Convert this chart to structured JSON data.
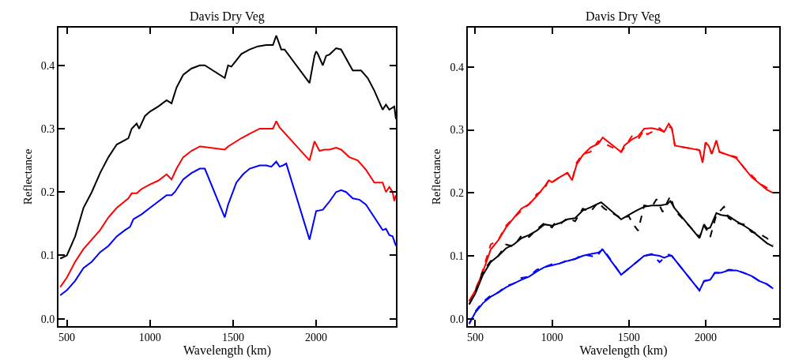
{
  "chart_data": [
    {
      "type": "line",
      "title": "Davis Dry Veg",
      "xlabel": "Wavelength (km)",
      "ylabel": "Reflectance",
      "xlim": [
        450,
        2480
      ],
      "ylim": [
        -0.012,
        0.46
      ],
      "xticks": [
        500,
        1000,
        1500,
        2000
      ],
      "yticks": [
        {
          "value": 0,
          "label": "0.0"
        },
        0.1,
        0.2,
        0.3,
        0.4
      ],
      "marker": "none",
      "series": [
        {
          "color": "#000000",
          "line_style": "solid",
          "x": [
            460,
            500,
            550,
            600,
            650,
            700,
            750,
            800,
            870,
            890,
            920,
            935,
            970,
            1000,
            1050,
            1100,
            1130,
            1160,
            1200,
            1250,
            1300,
            1330,
            1450,
            1470,
            1490,
            1550,
            1600,
            1650,
            1700,
            1740,
            1760,
            1790,
            1810,
            1960,
            1990,
            2000,
            2010,
            2040,
            2060,
            2080,
            2120,
            2150,
            2220,
            2270,
            2310,
            2350,
            2400,
            2420,
            2440,
            2470,
            2480
          ],
          "values": [
            0.095,
            0.1,
            0.13,
            0.175,
            0.2,
            0.23,
            0.255,
            0.275,
            0.285,
            0.3,
            0.308,
            0.3,
            0.32,
            0.327,
            0.335,
            0.345,
            0.34,
            0.365,
            0.385,
            0.395,
            0.4,
            0.4,
            0.38,
            0.4,
            0.398,
            0.418,
            0.425,
            0.43,
            0.432,
            0.432,
            0.447,
            0.425,
            0.425,
            0.372,
            0.415,
            0.422,
            0.418,
            0.4,
            0.415,
            0.417,
            0.427,
            0.425,
            0.392,
            0.392,
            0.38,
            0.36,
            0.33,
            0.338,
            0.33,
            0.335,
            0.315
          ]
        },
        {
          "color": "#ff0000",
          "line_style": "solid",
          "x": [
            460,
            500,
            550,
            600,
            650,
            700,
            750,
            800,
            870,
            890,
            920,
            950,
            1000,
            1050,
            1100,
            1130,
            1160,
            1200,
            1250,
            1300,
            1450,
            1470,
            1550,
            1600,
            1660,
            1720,
            1740,
            1760,
            1780,
            1960,
            1990,
            2020,
            2050,
            2080,
            2120,
            2150,
            2200,
            2250,
            2300,
            2350,
            2400,
            2420,
            2440,
            2460,
            2470,
            2480
          ],
          "values": [
            0.05,
            0.065,
            0.09,
            0.11,
            0.125,
            0.14,
            0.16,
            0.175,
            0.19,
            0.198,
            0.198,
            0.205,
            0.212,
            0.218,
            0.228,
            0.22,
            0.237,
            0.255,
            0.265,
            0.272,
            0.267,
            0.272,
            0.285,
            0.292,
            0.3,
            0.3,
            0.3,
            0.312,
            0.302,
            0.25,
            0.28,
            0.265,
            0.267,
            0.267,
            0.27,
            0.267,
            0.255,
            0.25,
            0.235,
            0.215,
            0.215,
            0.2,
            0.208,
            0.2,
            0.186,
            0.195
          ]
        },
        {
          "color": "#0000ff",
          "line_style": "solid",
          "x": [
            460,
            500,
            550,
            600,
            650,
            700,
            750,
            800,
            850,
            880,
            900,
            950,
            1000,
            1050,
            1100,
            1130,
            1150,
            1200,
            1250,
            1300,
            1330,
            1450,
            1470,
            1520,
            1560,
            1600,
            1660,
            1700,
            1730,
            1760,
            1780,
            1800,
            1820,
            1960,
            2000,
            2040,
            2080,
            2120,
            2150,
            2180,
            2220,
            2260,
            2300,
            2350,
            2400,
            2420,
            2440,
            2460,
            2480
          ],
          "values": [
            0.037,
            0.045,
            0.06,
            0.08,
            0.09,
            0.105,
            0.115,
            0.13,
            0.14,
            0.145,
            0.157,
            0.165,
            0.175,
            0.185,
            0.195,
            0.195,
            0.2,
            0.22,
            0.23,
            0.237,
            0.237,
            0.16,
            0.18,
            0.215,
            0.228,
            0.237,
            0.242,
            0.242,
            0.24,
            0.248,
            0.24,
            0.242,
            0.245,
            0.125,
            0.17,
            0.172,
            0.185,
            0.2,
            0.203,
            0.2,
            0.19,
            0.188,
            0.18,
            0.16,
            0.14,
            0.142,
            0.132,
            0.13,
            0.115
          ]
        }
      ]
    },
    {
      "type": "line",
      "title": "Davis Dry Veg",
      "xlabel": "Wavelength (km)",
      "ylabel": "Reflectance",
      "xlim": [
        450,
        2480
      ],
      "ylim": [
        -0.012,
        0.463
      ],
      "xticks": [
        500,
        1000,
        1500,
        2000
      ],
      "yticks": [
        {
          "value": 0,
          "label": "0.0"
        },
        0.1,
        0.2,
        0.3,
        0.4
      ],
      "marker": "none",
      "series": [
        {
          "color": "#ff0000",
          "line_style": "solid",
          "x": [
            460,
            500,
            550,
            600,
            650,
            700,
            750,
            800,
            850,
            900,
            950,
            980,
            1000,
            1050,
            1100,
            1130,
            1160,
            1200,
            1250,
            1300,
            1330,
            1450,
            1470,
            1520,
            1560,
            1600,
            1650,
            1700,
            1730,
            1760,
            1780,
            1800,
            1960,
            1980,
            2000,
            2020,
            2040,
            2070,
            2090,
            2150,
            2200,
            2250,
            2300,
            2350,
            2400,
            2440
          ],
          "values": [
            0.028,
            0.045,
            0.075,
            0.11,
            0.125,
            0.145,
            0.16,
            0.175,
            0.182,
            0.195,
            0.21,
            0.22,
            0.217,
            0.225,
            0.232,
            0.22,
            0.245,
            0.26,
            0.272,
            0.278,
            0.288,
            0.265,
            0.275,
            0.285,
            0.29,
            0.302,
            0.303,
            0.3,
            0.297,
            0.31,
            0.303,
            0.275,
            0.268,
            0.248,
            0.28,
            0.275,
            0.262,
            0.283,
            0.265,
            0.26,
            0.255,
            0.24,
            0.225,
            0.215,
            0.205,
            0.2
          ]
        },
        {
          "color": "#ff0000",
          "line_style": "dashed",
          "x": [
            460,
            500,
            550,
            600,
            650,
            700,
            750,
            800,
            850,
            900,
            950,
            980,
            1000,
            1050,
            1100,
            1130,
            1160,
            1200,
            1250,
            1300,
            1330,
            1450,
            1470,
            1520,
            1560,
            1600,
            1620,
            1660,
            1700,
            1730,
            1760,
            1780,
            1800,
            1960,
            1980,
            2000,
            2020,
            2040,
            2070,
            2090,
            2150,
            2200,
            2250,
            2300,
            2350,
            2400,
            2440
          ],
          "values": [
            0.028,
            0.045,
            0.078,
            0.118,
            0.125,
            0.148,
            0.16,
            0.172,
            0.182,
            0.198,
            0.205,
            0.222,
            0.217,
            0.225,
            0.232,
            0.22,
            0.248,
            0.262,
            0.265,
            0.282,
            0.28,
            0.265,
            0.272,
            0.29,
            0.285,
            0.3,
            0.293,
            0.298,
            0.303,
            0.297,
            0.305,
            0.303,
            0.275,
            0.268,
            0.25,
            0.28,
            0.275,
            0.262,
            0.283,
            0.265,
            0.26,
            0.257,
            0.24,
            0.228,
            0.215,
            0.208,
            0.2
          ]
        },
        {
          "color": "#000000",
          "line_style": "solid",
          "x": [
            460,
            500,
            550,
            600,
            650,
            700,
            750,
            800,
            850,
            900,
            950,
            1000,
            1050,
            1100,
            1150,
            1200,
            1250,
            1300,
            1320,
            1450,
            1500,
            1550,
            1600,
            1650,
            1700,
            1750,
            1770,
            1800,
            1960,
            1990,
            2010,
            2030,
            2070,
            2100,
            2150,
            2200,
            2250,
            2300,
            2350,
            2400,
            2440
          ],
          "values": [
            0.023,
            0.04,
            0.07,
            0.09,
            0.1,
            0.112,
            0.118,
            0.128,
            0.133,
            0.14,
            0.15,
            0.148,
            0.152,
            0.158,
            0.16,
            0.172,
            0.177,
            0.183,
            0.185,
            0.158,
            0.165,
            0.172,
            0.178,
            0.18,
            0.18,
            0.182,
            0.187,
            0.175,
            0.128,
            0.15,
            0.143,
            0.145,
            0.168,
            0.165,
            0.163,
            0.155,
            0.148,
            0.14,
            0.13,
            0.12,
            0.115
          ]
        },
        {
          "color": "#000000",
          "line_style": "dashed",
          "x": [
            460,
            500,
            550,
            600,
            650,
            700,
            750,
            800,
            850,
            900,
            950,
            1000,
            1020,
            1050,
            1100,
            1150,
            1200,
            1250,
            1300,
            1340,
            1450,
            1500,
            1520,
            1560,
            1600,
            1650,
            1680,
            1720,
            1770,
            1800,
            1960,
            1990,
            2010,
            2030,
            2070,
            2120,
            2150,
            2200,
            2250,
            2300,
            2350,
            2400,
            2440
          ],
          "values": [
            0.023,
            0.042,
            0.075,
            0.092,
            0.1,
            0.118,
            0.115,
            0.132,
            0.13,
            0.142,
            0.152,
            0.145,
            0.153,
            0.15,
            0.16,
            0.155,
            0.175,
            0.17,
            0.185,
            0.175,
            0.16,
            0.163,
            0.153,
            0.14,
            0.18,
            0.178,
            0.19,
            0.17,
            0.195,
            0.172,
            0.13,
            0.148,
            0.14,
            0.13,
            0.165,
            0.178,
            0.16,
            0.152,
            0.15,
            0.138,
            0.135,
            0.128,
            0.118
          ]
        },
        {
          "color": "#0000ff",
          "line_style": "solid",
          "x": [
            460,
            500,
            550,
            600,
            650,
            700,
            750,
            800,
            850,
            900,
            950,
            1000,
            1050,
            1100,
            1150,
            1200,
            1250,
            1300,
            1330,
            1450,
            1500,
            1550,
            1600,
            1650,
            1700,
            1730,
            1760,
            1780,
            1960,
            1990,
            2030,
            2060,
            2100,
            2150,
            2200,
            2250,
            2300,
            2350,
            2400,
            2440
          ],
          "values": [
            -0.008,
            0.01,
            0.025,
            0.035,
            0.042,
            0.05,
            0.056,
            0.062,
            0.067,
            0.075,
            0.082,
            0.085,
            0.088,
            0.092,
            0.095,
            0.1,
            0.103,
            0.105,
            0.11,
            0.07,
            0.08,
            0.09,
            0.1,
            0.102,
            0.1,
            0.097,
            0.1,
            0.1,
            0.045,
            0.06,
            0.062,
            0.073,
            0.073,
            0.077,
            0.077,
            0.073,
            0.068,
            0.06,
            0.055,
            0.048
          ]
        },
        {
          "color": "#0000ff",
          "line_style": "dashed",
          "x": [
            460,
            500,
            550,
            600,
            650,
            700,
            750,
            800,
            850,
            900,
            950,
            1000,
            1050,
            1100,
            1150,
            1200,
            1250,
            1290,
            1330,
            1450,
            1500,
            1550,
            1600,
            1650,
            1700,
            1730,
            1760,
            1780,
            1960,
            1990,
            2030,
            2060,
            2100,
            2150,
            2200,
            2250,
            2300,
            2350,
            2400,
            2440
          ],
          "values": [
            -0.008,
            0.012,
            0.027,
            0.037,
            0.042,
            0.052,
            0.056,
            0.065,
            0.067,
            0.078,
            0.082,
            0.087,
            0.088,
            0.093,
            0.095,
            0.102,
            0.1,
            0.098,
            0.112,
            0.07,
            0.08,
            0.09,
            0.1,
            0.103,
            0.09,
            0.097,
            0.102,
            0.1,
            0.045,
            0.06,
            0.062,
            0.073,
            0.073,
            0.078,
            0.077,
            0.073,
            0.068,
            0.06,
            0.055,
            0.048
          ]
        }
      ]
    }
  ]
}
